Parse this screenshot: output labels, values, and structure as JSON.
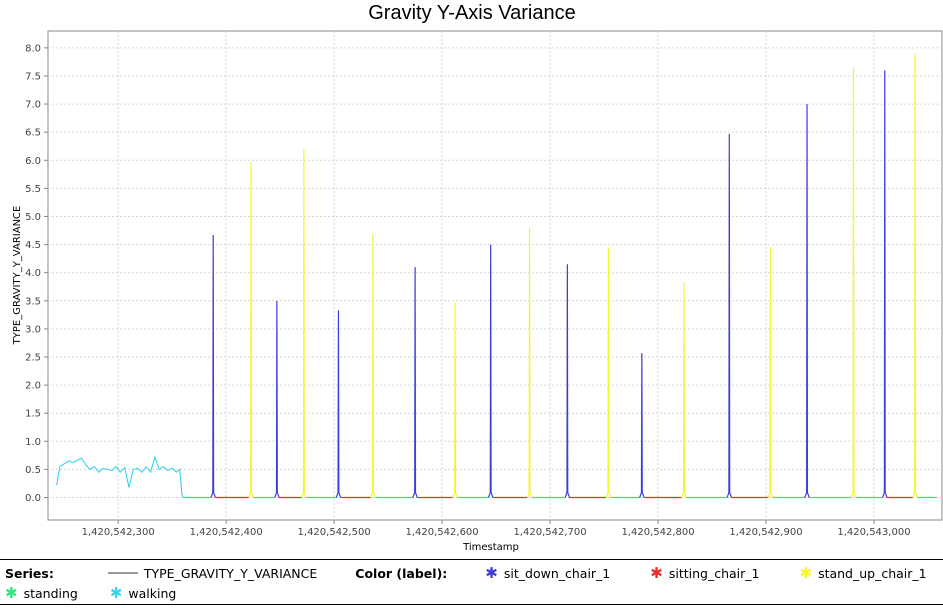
{
  "chart_data": {
    "type": "line",
    "title": "Gravity Y-Axis Variance",
    "xlabel": "Timestamp",
    "ylabel": "TYPE_GRAVITY_Y_VARIANCE",
    "xlim": [
      1420542235,
      1420543063
    ],
    "ylim": [
      -0.4,
      8.3
    ],
    "x_ticks": [
      1420542300,
      1420542400,
      1420542500,
      1420542600,
      1420542700,
      1420542800,
      1420542900,
      1420543000
    ],
    "x_tick_labels": [
      "1,420,542,300",
      "1,420,542,400",
      "1,420,542,500",
      "1,420,542,600",
      "1,420,542,700",
      "1,420,542,800",
      "1,420,542,900",
      "1,420,543,000"
    ],
    "y_ticks": [
      0.0,
      0.5,
      1.0,
      1.5,
      2.0,
      2.5,
      3.0,
      3.5,
      4.0,
      4.5,
      5.0,
      5.5,
      6.0,
      6.5,
      7.0,
      7.5,
      8.0
    ],
    "y_tick_labels": [
      "0.0",
      "0.5",
      "1.0",
      "1.5",
      "2.0",
      "2.5",
      "3.0",
      "3.5",
      "4.0",
      "4.5",
      "5.0",
      "5.5",
      "6.0",
      "6.5",
      "7.0",
      "7.5",
      "8.0"
    ],
    "grid": true,
    "legend_position": "bottom",
    "series_name": "TYPE_GRAVITY_Y_VARIANCE",
    "labels": [
      {
        "name": "sit_down_chair_1",
        "color": "#3c3cdc"
      },
      {
        "name": "sitting_chair_1",
        "color": "#ee2b2b"
      },
      {
        "name": "stand_up_chair_1",
        "color": "#f5f52a"
      },
      {
        "name": "standing",
        "color": "#2fe67a"
      },
      {
        "name": "walking",
        "color": "#3ad2ee"
      }
    ],
    "walking_segment": {
      "x": [
        1420542243,
        1420542246,
        1420542250,
        1420542254,
        1420542258,
        1420542262,
        1420542266,
        1420542270,
        1420542274,
        1420542278,
        1420542282,
        1420542286,
        1420542290,
        1420542294,
        1420542298,
        1420542302,
        1420542306,
        1420542310,
        1420542314,
        1420542318,
        1420542322,
        1420542326,
        1420542330,
        1420542334,
        1420542338,
        1420542342,
        1420542346,
        1420542350,
        1420542354,
        1420542357,
        1420542358,
        1420542359,
        1420542360
      ],
      "y": [
        0.22,
        0.55,
        0.6,
        0.65,
        0.62,
        0.66,
        0.7,
        0.58,
        0.5,
        0.55,
        0.45,
        0.52,
        0.5,
        0.48,
        0.55,
        0.45,
        0.53,
        0.18,
        0.5,
        0.52,
        0.45,
        0.55,
        0.45,
        0.72,
        0.5,
        0.55,
        0.48,
        0.52,
        0.45,
        0.5,
        0.3,
        0.05,
        0.0
      ]
    },
    "spikes": [
      {
        "label": "sit_down_chair_1",
        "x": 1420542388,
        "y": 4.67
      },
      {
        "label": "stand_up_chair_1",
        "x": 1420542423,
        "y": 5.97
      },
      {
        "label": "sit_down_chair_1",
        "x": 1420542447,
        "y": 3.5
      },
      {
        "label": "stand_up_chair_1",
        "x": 1420542472,
        "y": 6.2
      },
      {
        "label": "sit_down_chair_1",
        "x": 1420542504,
        "y": 3.33
      },
      {
        "label": "stand_up_chair_1",
        "x": 1420542536,
        "y": 4.7
      },
      {
        "label": "sit_down_chair_1",
        "x": 1420542575,
        "y": 4.1
      },
      {
        "label": "stand_up_chair_1",
        "x": 1420542612,
        "y": 3.47
      },
      {
        "label": "sit_down_chair_1",
        "x": 1420542645,
        "y": 4.5
      },
      {
        "label": "stand_up_chair_1",
        "x": 1420542681,
        "y": 4.8
      },
      {
        "label": "sit_down_chair_1",
        "x": 1420542716,
        "y": 4.15
      },
      {
        "label": "stand_up_chair_1",
        "x": 1420542754,
        "y": 4.45
      },
      {
        "label": "sit_down_chair_1",
        "x": 1420542785,
        "y": 2.57
      },
      {
        "label": "stand_up_chair_1",
        "x": 1420542824,
        "y": 3.82
      },
      {
        "label": "sit_down_chair_1",
        "x": 1420542866,
        "y": 6.47
      },
      {
        "label": "stand_up_chair_1",
        "x": 1420542904,
        "y": 4.45
      },
      {
        "label": "sit_down_chair_1",
        "x": 1420542938,
        "y": 7.0
      },
      {
        "label": "stand_up_chair_1",
        "x": 1420542981,
        "y": 7.65
      },
      {
        "label": "sit_down_chair_1",
        "x": 1420543010,
        "y": 7.6
      },
      {
        "label": "stand_up_chair_1",
        "x": 1420543038,
        "y": 7.9
      }
    ],
    "baseline_segments": [
      {
        "label": "standing",
        "x0": 1420542360,
        "x1": 1420542386
      },
      {
        "label": "sitting_chair_1",
        "x0": 1420542390,
        "x1": 1420542421
      },
      {
        "label": "standing",
        "x0": 1420542425,
        "x1": 1420542445
      },
      {
        "label": "sitting_chair_1",
        "x0": 1420542449,
        "x1": 1420542470
      },
      {
        "label": "standing",
        "x0": 1420542474,
        "x1": 1420542502
      },
      {
        "label": "sitting_chair_1",
        "x0": 1420542506,
        "x1": 1420542534
      },
      {
        "label": "standing",
        "x0": 1420542538,
        "x1": 1420542573
      },
      {
        "label": "sitting_chair_1",
        "x0": 1420542577,
        "x1": 1420542610
      },
      {
        "label": "standing",
        "x0": 1420542614,
        "x1": 1420542643
      },
      {
        "label": "sitting_chair_1",
        "x0": 1420542647,
        "x1": 1420542679
      },
      {
        "label": "standing",
        "x0": 1420542683,
        "x1": 1420542714
      },
      {
        "label": "sitting_chair_1",
        "x0": 1420542718,
        "x1": 1420542752
      },
      {
        "label": "standing",
        "x0": 1420542756,
        "x1": 1420542783
      },
      {
        "label": "sitting_chair_1",
        "x0": 1420542787,
        "x1": 1420542822
      },
      {
        "label": "standing",
        "x0": 1420542826,
        "x1": 1420542864
      },
      {
        "label": "sitting_chair_1",
        "x0": 1420542868,
        "x1": 1420542902
      },
      {
        "label": "standing",
        "x0": 1420542906,
        "x1": 1420542936
      },
      {
        "label": "standing",
        "x0": 1420542940,
        "x1": 1420542979
      },
      {
        "label": "standing",
        "x0": 1420542983,
        "x1": 1420543008
      },
      {
        "label": "sitting_chair_1",
        "x0": 1420543012,
        "x1": 1420543036
      },
      {
        "label": "standing",
        "x0": 1420543040,
        "x1": 1420543058
      }
    ]
  },
  "legend": {
    "series_heading": "Series:",
    "series_line_label": "TYPE_GRAVITY_Y_VARIANCE",
    "series_line_color": "#999999",
    "color_heading": "Color (label):",
    "glyph": "✱",
    "entries": [
      {
        "label": "sit_down_chair_1",
        "color": "#3c3cdc"
      },
      {
        "label": "sitting_chair_1",
        "color": "#ee2b2b"
      },
      {
        "label": "stand_up_chair_1",
        "color": "#f5f52a"
      },
      {
        "label": "standing",
        "color": "#2fe67a"
      },
      {
        "label": "walking",
        "color": "#3ad2ee"
      }
    ]
  }
}
